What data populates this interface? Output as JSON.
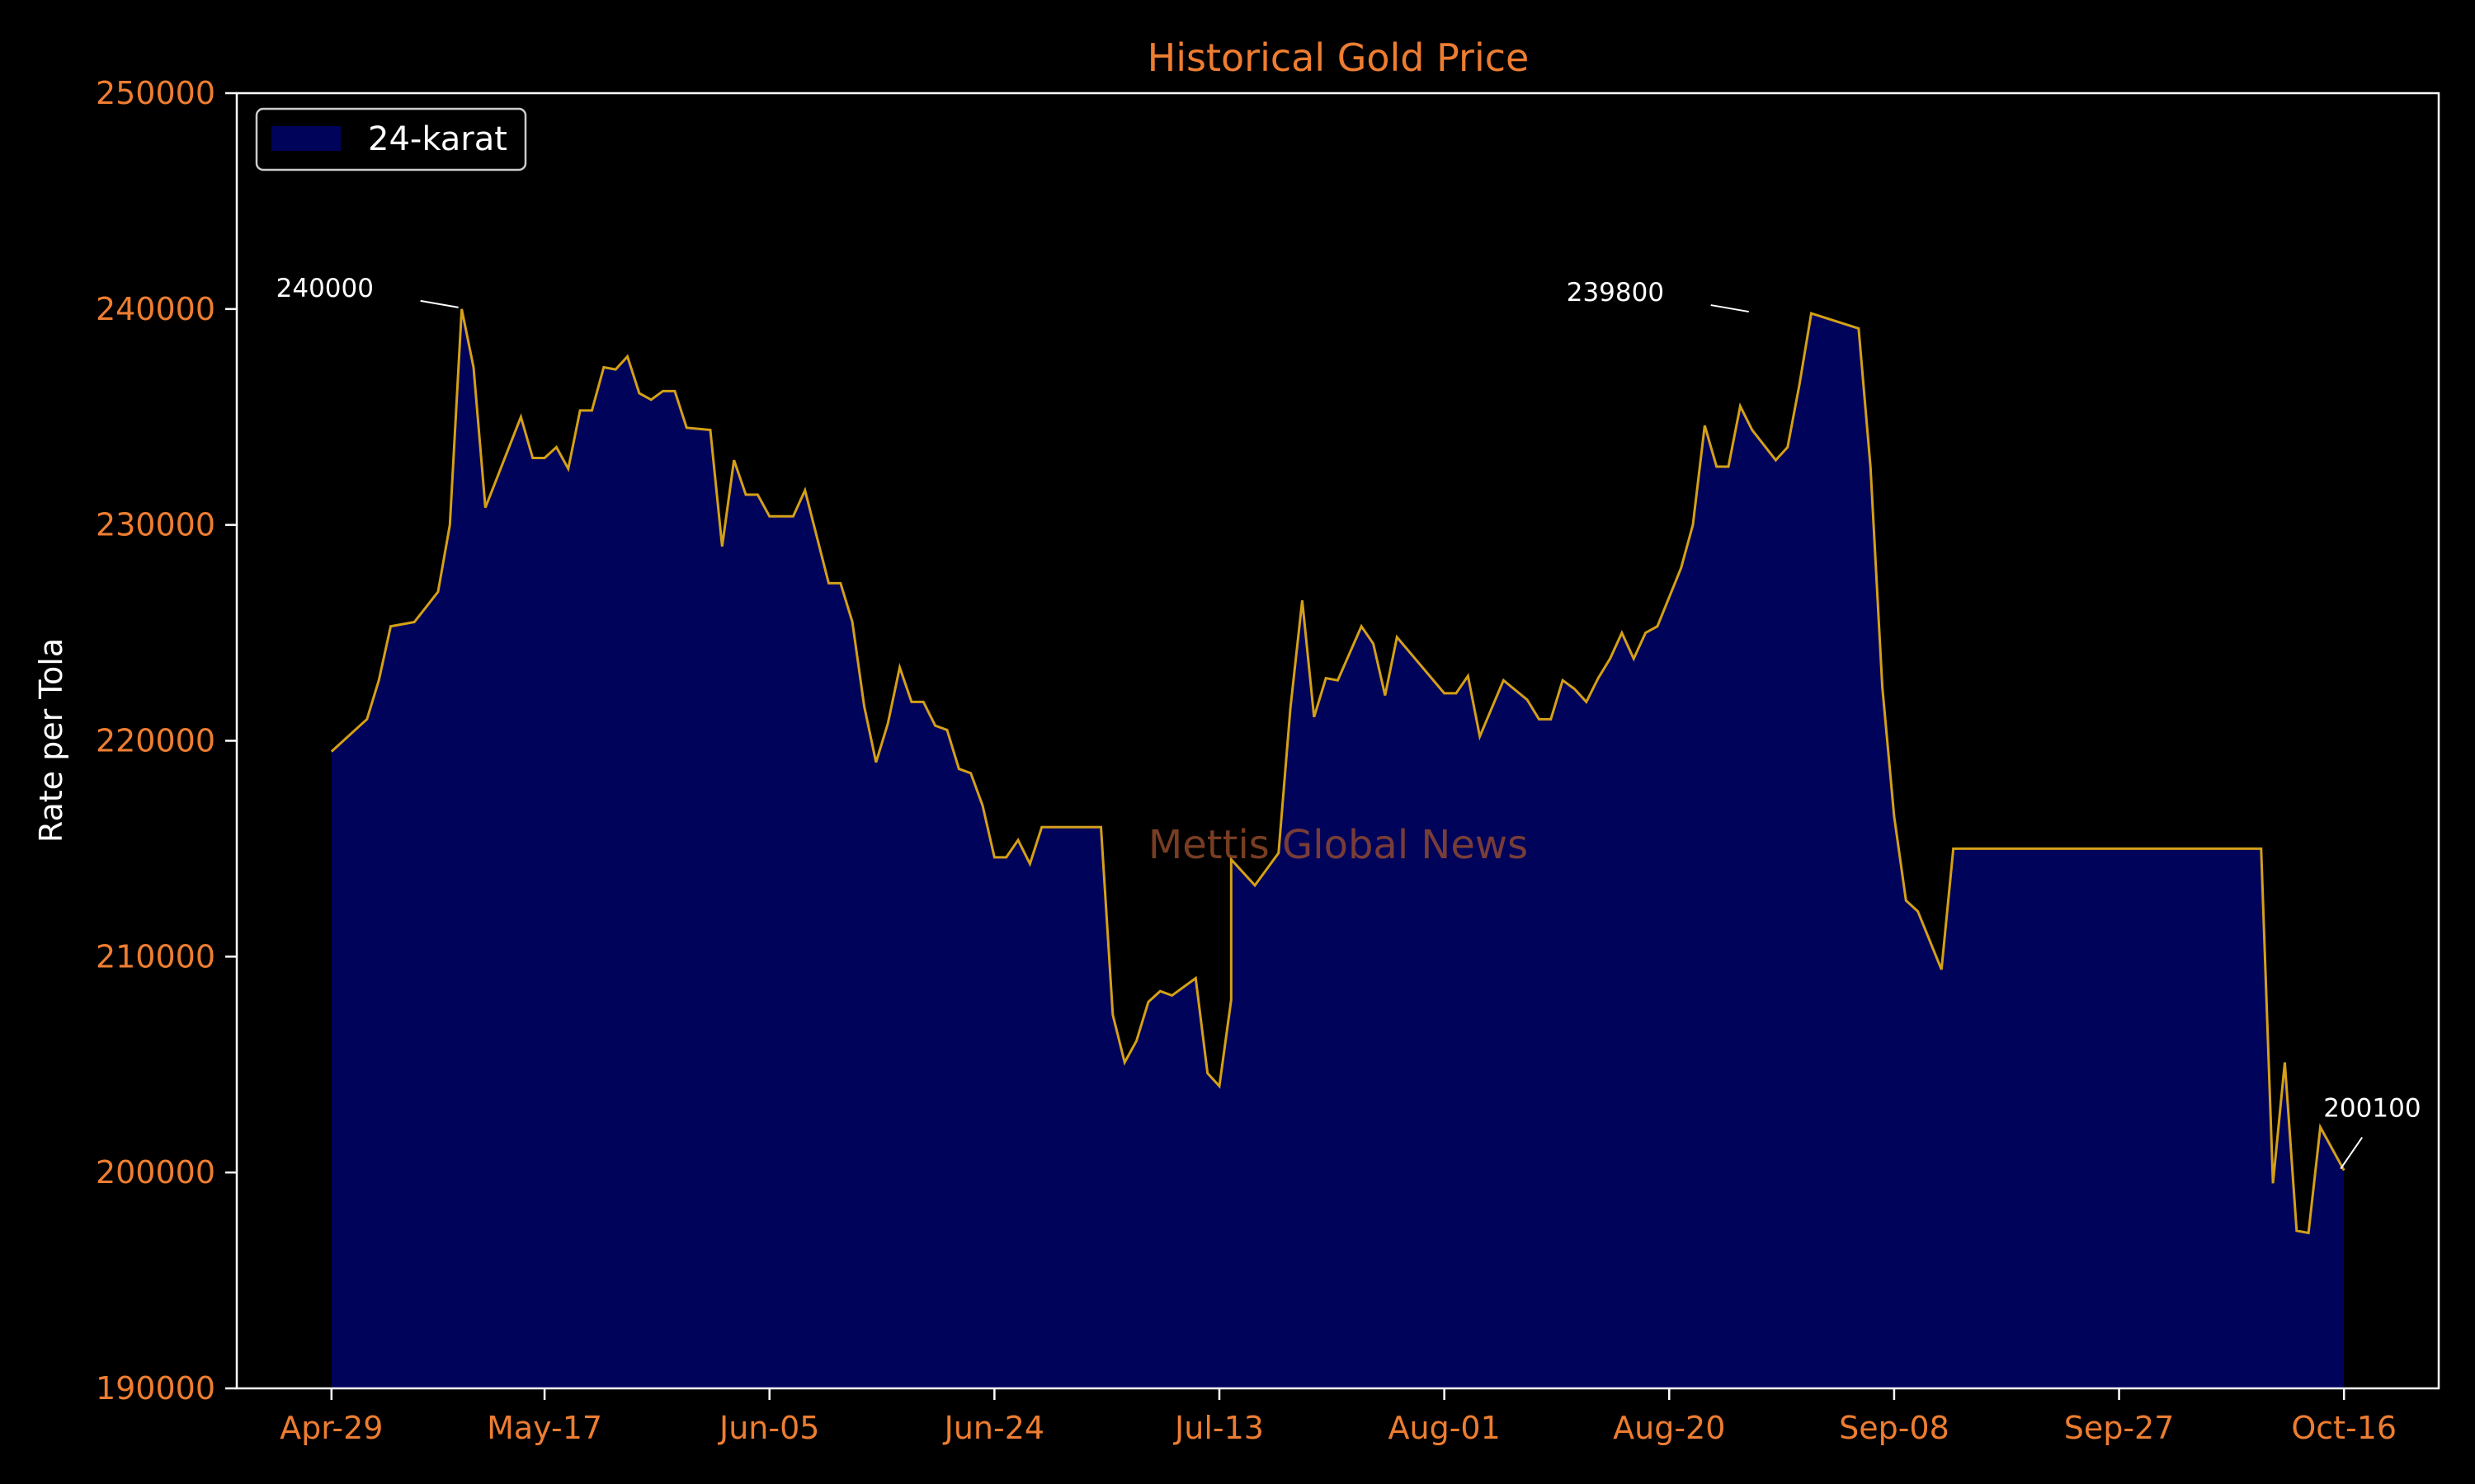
{
  "chart_data": {
    "type": "area",
    "title": "Historical Gold Price",
    "xlabel": "",
    "ylabel": "Rate per Tola",
    "watermark": "Mettis Global News",
    "legend": {
      "placement": "top-left",
      "entries": [
        "24-karat"
      ]
    },
    "grid": false,
    "x_range": [
      "2023-04-21",
      "2023-10-24"
    ],
    "ylim": [
      190000,
      250000
    ],
    "x_ticks": [
      {
        "date": "2023-04-29",
        "label": "Apr-29"
      },
      {
        "date": "2023-05-17",
        "label": "May-17"
      },
      {
        "date": "2023-06-05",
        "label": "Jun-05"
      },
      {
        "date": "2023-06-24",
        "label": "Jun-24"
      },
      {
        "date": "2023-07-13",
        "label": "Jul-13"
      },
      {
        "date": "2023-08-01",
        "label": "Aug-01"
      },
      {
        "date": "2023-08-20",
        "label": "Aug-20"
      },
      {
        "date": "2023-09-08",
        "label": "Sep-08"
      },
      {
        "date": "2023-09-27",
        "label": "Sep-27"
      },
      {
        "date": "2023-10-16",
        "label": "Oct-16"
      }
    ],
    "y_ticks": [
      {
        "value": 190000,
        "label": "190000"
      },
      {
        "value": 200000,
        "label": "200000"
      },
      {
        "value": 210000,
        "label": "210000"
      },
      {
        "value": 220000,
        "label": "220000"
      },
      {
        "value": 230000,
        "label": "230000"
      },
      {
        "value": 240000,
        "label": "240000"
      },
      {
        "value": 250000,
        "label": "250000"
      }
    ],
    "annotations": [
      {
        "date": "2023-05-10",
        "value": 240000,
        "text": "240000",
        "side": "left"
      },
      {
        "date": "2023-08-27",
        "value": 239800,
        "text": "239800",
        "side": "left"
      },
      {
        "date": "2023-10-16",
        "value": 200100,
        "text": "200100",
        "side": "above"
      }
    ],
    "series": [
      {
        "name": "24-karat",
        "line_color": "#d4a017",
        "fill_color": "#00035a",
        "points": [
          [
            "2023-04-29",
            219500
          ],
          [
            "2023-05-02",
            221000
          ],
          [
            "2023-05-03",
            222800
          ],
          [
            "2023-05-04",
            225300
          ],
          [
            "2023-05-06",
            225500
          ],
          [
            "2023-05-08",
            226900
          ],
          [
            "2023-05-09",
            230000
          ],
          [
            "2023-05-10",
            240000
          ],
          [
            "2023-05-11",
            237300
          ],
          [
            "2023-05-12",
            230800
          ],
          [
            "2023-05-15",
            235000
          ],
          [
            "2023-05-16",
            233100
          ],
          [
            "2023-05-17",
            233100
          ],
          [
            "2023-05-18",
            233600
          ],
          [
            "2023-05-19",
            232600
          ],
          [
            "2023-05-20",
            235300
          ],
          [
            "2023-05-21",
            235300
          ],
          [
            "2023-05-22",
            237300
          ],
          [
            "2023-05-23",
            237200
          ],
          [
            "2023-05-24",
            237800
          ],
          [
            "2023-05-25",
            236100
          ],
          [
            "2023-05-26",
            235800
          ],
          [
            "2023-05-27",
            236200
          ],
          [
            "2023-05-28",
            236200
          ],
          [
            "2023-05-29",
            234500
          ],
          [
            "2023-05-31",
            234400
          ],
          [
            "2023-06-01",
            229000
          ],
          [
            "2023-06-02",
            233000
          ],
          [
            "2023-06-03",
            231400
          ],
          [
            "2023-06-04",
            231400
          ],
          [
            "2023-06-05",
            230400
          ],
          [
            "2023-06-07",
            230400
          ],
          [
            "2023-06-08",
            231600
          ],
          [
            "2023-06-10",
            227300
          ],
          [
            "2023-06-11",
            227300
          ],
          [
            "2023-06-12",
            225500
          ],
          [
            "2023-06-13",
            221600
          ],
          [
            "2023-06-14",
            219000
          ],
          [
            "2023-06-15",
            220800
          ],
          [
            "2023-06-16",
            223400
          ],
          [
            "2023-06-17",
            221800
          ],
          [
            "2023-06-18",
            221800
          ],
          [
            "2023-06-19",
            220700
          ],
          [
            "2023-06-20",
            220500
          ],
          [
            "2023-06-21",
            218700
          ],
          [
            "2023-06-22",
            218500
          ],
          [
            "2023-06-23",
            217000
          ],
          [
            "2023-06-24",
            214600
          ],
          [
            "2023-06-25",
            214600
          ],
          [
            "2023-06-26",
            215400
          ],
          [
            "2023-06-27",
            214300
          ],
          [
            "2023-06-28",
            216000
          ],
          [
            "2023-07-03",
            216000
          ],
          [
            "2023-07-04",
            207300
          ],
          [
            "2023-07-05",
            205100
          ],
          [
            "2023-07-06",
            206100
          ],
          [
            "2023-07-07",
            207900
          ],
          [
            "2023-07-08",
            208400
          ],
          [
            "2023-07-09",
            208200
          ],
          [
            "2023-07-11",
            209000
          ],
          [
            "2023-07-12",
            204600
          ],
          [
            "2023-07-13",
            204000
          ],
          [
            "2023-07-14",
            208000
          ],
          [
            "2023-07-14",
            214500
          ],
          [
            "2023-07-16",
            213300
          ],
          [
            "2023-07-18",
            214800
          ],
          [
            "2023-07-19",
            221500
          ],
          [
            "2023-07-20",
            226500
          ],
          [
            "2023-07-21",
            221100
          ],
          [
            "2023-07-22",
            222900
          ],
          [
            "2023-07-23",
            222800
          ],
          [
            "2023-07-25",
            225300
          ],
          [
            "2023-07-26",
            224500
          ],
          [
            "2023-07-27",
            222100
          ],
          [
            "2023-07-28",
            224800
          ],
          [
            "2023-08-01",
            222200
          ],
          [
            "2023-08-02",
            222200
          ],
          [
            "2023-08-03",
            223000
          ],
          [
            "2023-08-04",
            220200
          ],
          [
            "2023-08-06",
            222800
          ],
          [
            "2023-08-08",
            221900
          ],
          [
            "2023-08-09",
            221000
          ],
          [
            "2023-08-10",
            221000
          ],
          [
            "2023-08-11",
            222800
          ],
          [
            "2023-08-12",
            222400
          ],
          [
            "2023-08-13",
            221800
          ],
          [
            "2023-08-14",
            222900
          ],
          [
            "2023-08-15",
            223800
          ],
          [
            "2023-08-16",
            225000
          ],
          [
            "2023-08-17",
            223800
          ],
          [
            "2023-08-18",
            225000
          ],
          [
            "2023-08-19",
            225300
          ],
          [
            "2023-08-21",
            228000
          ],
          [
            "2023-08-22",
            230000
          ],
          [
            "2023-08-23",
            234600
          ],
          [
            "2023-08-24",
            232700
          ],
          [
            "2023-08-25",
            232700
          ],
          [
            "2023-08-26",
            235500
          ],
          [
            "2023-08-27",
            234400
          ],
          [
            "2023-08-29",
            233000
          ],
          [
            "2023-08-30",
            233600
          ],
          [
            "2023-08-31",
            236500
          ],
          [
            "2023-09-01",
            239800
          ],
          [
            "2023-09-05",
            239100
          ],
          [
            "2023-09-06",
            232700
          ],
          [
            "2023-09-07",
            222500
          ],
          [
            "2023-09-08",
            216500
          ],
          [
            "2023-09-09",
            212600
          ],
          [
            "2023-09-10",
            212100
          ],
          [
            "2023-09-12",
            209400
          ],
          [
            "2023-09-13",
            215000
          ],
          [
            "2023-10-09",
            215000
          ],
          [
            "2023-10-10",
            199500
          ],
          [
            "2023-10-11",
            205100
          ],
          [
            "2023-10-12",
            197300
          ],
          [
            "2023-10-13",
            197200
          ],
          [
            "2023-10-14",
            202100
          ],
          [
            "2023-10-16",
            200100
          ]
        ]
      }
    ]
  }
}
